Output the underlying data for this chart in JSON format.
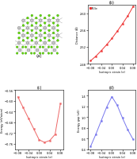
{
  "panel_b": {
    "label": "Pt-Se",
    "color": "#ee3333",
    "x": [
      -0.08,
      -0.06,
      -0.04,
      -0.02,
      0.0,
      0.02,
      0.04,
      0.06,
      0.08
    ],
    "y": [
      2.487,
      2.498,
      2.511,
      2.525,
      2.54,
      2.557,
      2.575,
      2.594,
      2.616
    ],
    "xlabel": "Isotropic strain (e)",
    "ylabel": "Distance (Å)",
    "title": "(b)",
    "ylim": [
      2.48,
      2.62
    ],
    "yticks": [
      2.48,
      2.52,
      2.56,
      2.6
    ]
  },
  "panel_c": {
    "color": "#ee6666",
    "x": [
      -0.08,
      -0.06,
      -0.04,
      -0.02,
      0.0,
      0.02,
      0.04,
      0.06,
      0.08
    ],
    "y": [
      -0.585,
      -0.625,
      -0.665,
      -0.705,
      -0.745,
      -0.755,
      -0.748,
      -0.725,
      -0.61
    ],
    "xlabel": "Isotropic strain (e)",
    "ylabel": "Energy (eV/atom)",
    "title": "(c)",
    "ylim": [
      -0.78,
      -0.56
    ],
    "yticks": [
      -0.76,
      -0.72,
      -0.68,
      -0.64,
      -0.6,
      -0.56
    ]
  },
  "panel_d": {
    "color": "#7777ee",
    "x": [
      -0.08,
      -0.06,
      -0.04,
      -0.02,
      0.0,
      0.02,
      0.04,
      0.06,
      0.08
    ],
    "y": [
      0.45,
      0.68,
      0.93,
      1.18,
      1.38,
      1.22,
      0.98,
      0.76,
      0.58
    ],
    "xlabel": "Isotropic strain (e)",
    "ylabel": "Energy gap (eV)",
    "title": "(d)",
    "ylim": [
      0.4,
      1.5
    ],
    "yticks": [
      0.4,
      0.6,
      0.8,
      1.0,
      1.2,
      1.4
    ]
  },
  "background": "#ffffff",
  "pt_color": "#c8c8c8",
  "se_color": "#66dd00"
}
